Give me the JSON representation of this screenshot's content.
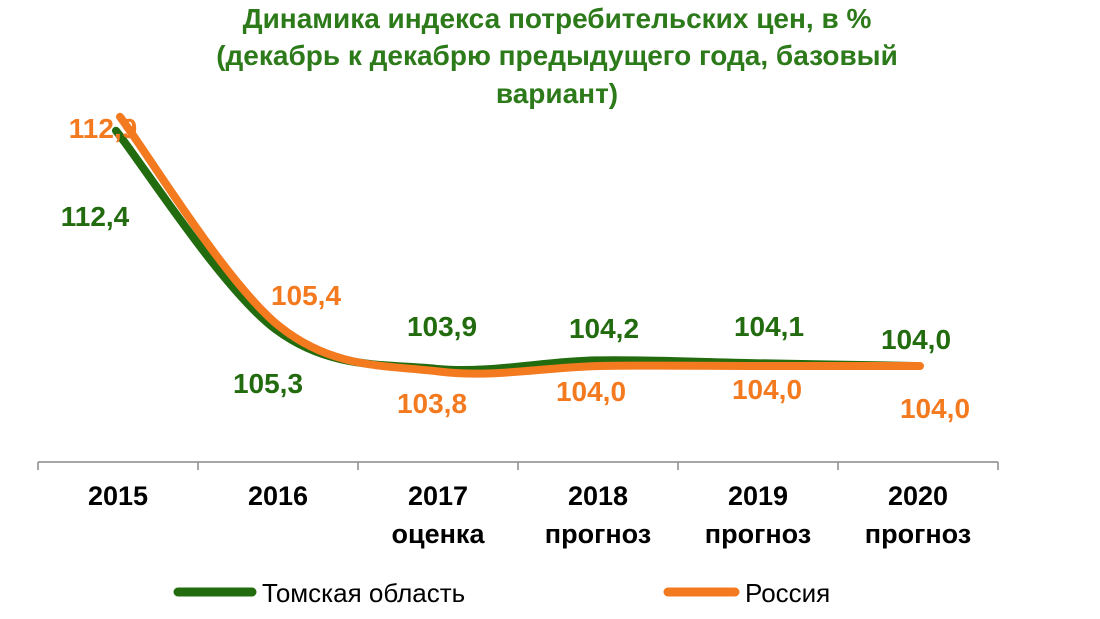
{
  "chart_data": {
    "type": "line",
    "title": [
      "Динамика индекса потребительских цен, в %",
      "(декабрь к декабрю предыдущего года, базовый",
      "вариант)"
    ],
    "categories": [
      [
        "2015"
      ],
      [
        "2016"
      ],
      [
        "2017",
        "оценка"
      ],
      [
        "2018",
        "прогноз"
      ],
      [
        "2019",
        "прогноз"
      ],
      [
        "2020",
        "прогноз"
      ]
    ],
    "series": [
      {
        "name": "Томская область",
        "color": "#226b0e",
        "values": [
          112.4,
          105.3,
          103.9,
          104.2,
          104.1,
          104.0
        ],
        "labels": [
          "112,4",
          "105,3",
          "103,9",
          "104,2",
          "104,1",
          "104,0"
        ]
      },
      {
        "name": "Россия",
        "color": "#f47a20",
        "values": [
          112.9,
          105.4,
          103.8,
          104.0,
          104.0,
          104.0
        ],
        "labels": [
          "112,9",
          "105,4",
          "103,8",
          "104,0",
          "104,0",
          "104,0"
        ]
      }
    ],
    "title_color": "#2c7a1a",
    "legend_position": "bottom",
    "smooth_lines": true,
    "grid": false,
    "y_axis_visible": false
  }
}
